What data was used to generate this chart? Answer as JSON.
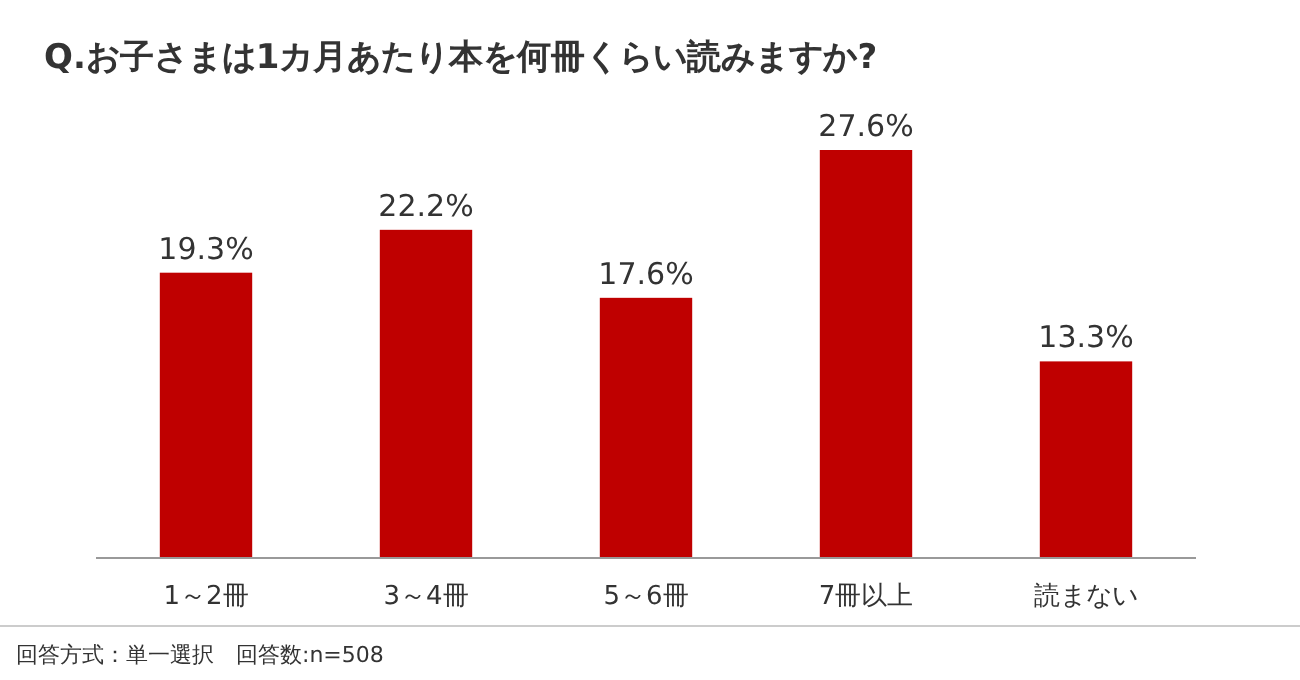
{
  "chart_data": {
    "type": "bar",
    "title": "Q.お子さまは1カ月あたり本を何冊くらい読みますか?",
    "categories": [
      "1～2冊",
      "3～4冊",
      "5～6冊",
      "7冊以上",
      "読まない"
    ],
    "values": [
      19.3,
      22.2,
      17.6,
      27.6,
      13.3
    ],
    "value_labels": [
      "19.3%",
      "22.2%",
      "17.6%",
      "27.6%",
      "13.3%"
    ],
    "color": "#bf0000",
    "annotations": [
      "回答方式：単一選択　回答数:n=508"
    ]
  }
}
